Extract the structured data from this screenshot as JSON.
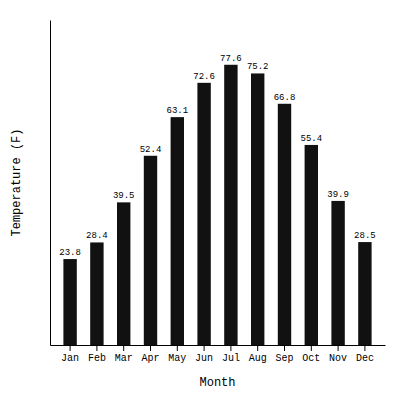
{
  "chart_data": {
    "type": "bar",
    "categories": [
      "Jan",
      "Feb",
      "Mar",
      "Apr",
      "May",
      "Jun",
      "Jul",
      "Aug",
      "Sep",
      "Oct",
      "Nov",
      "Dec"
    ],
    "values": [
      23.8,
      28.4,
      39.5,
      52.4,
      63.1,
      72.6,
      77.6,
      75.2,
      66.8,
      55.4,
      39.9,
      28.5
    ],
    "color": "#111111",
    "xlabel": "Month",
    "ylabel": "Temperature (F)",
    "ylim": [
      0,
      90
    ],
    "data_labels": true,
    "tick_labels": "x"
  }
}
